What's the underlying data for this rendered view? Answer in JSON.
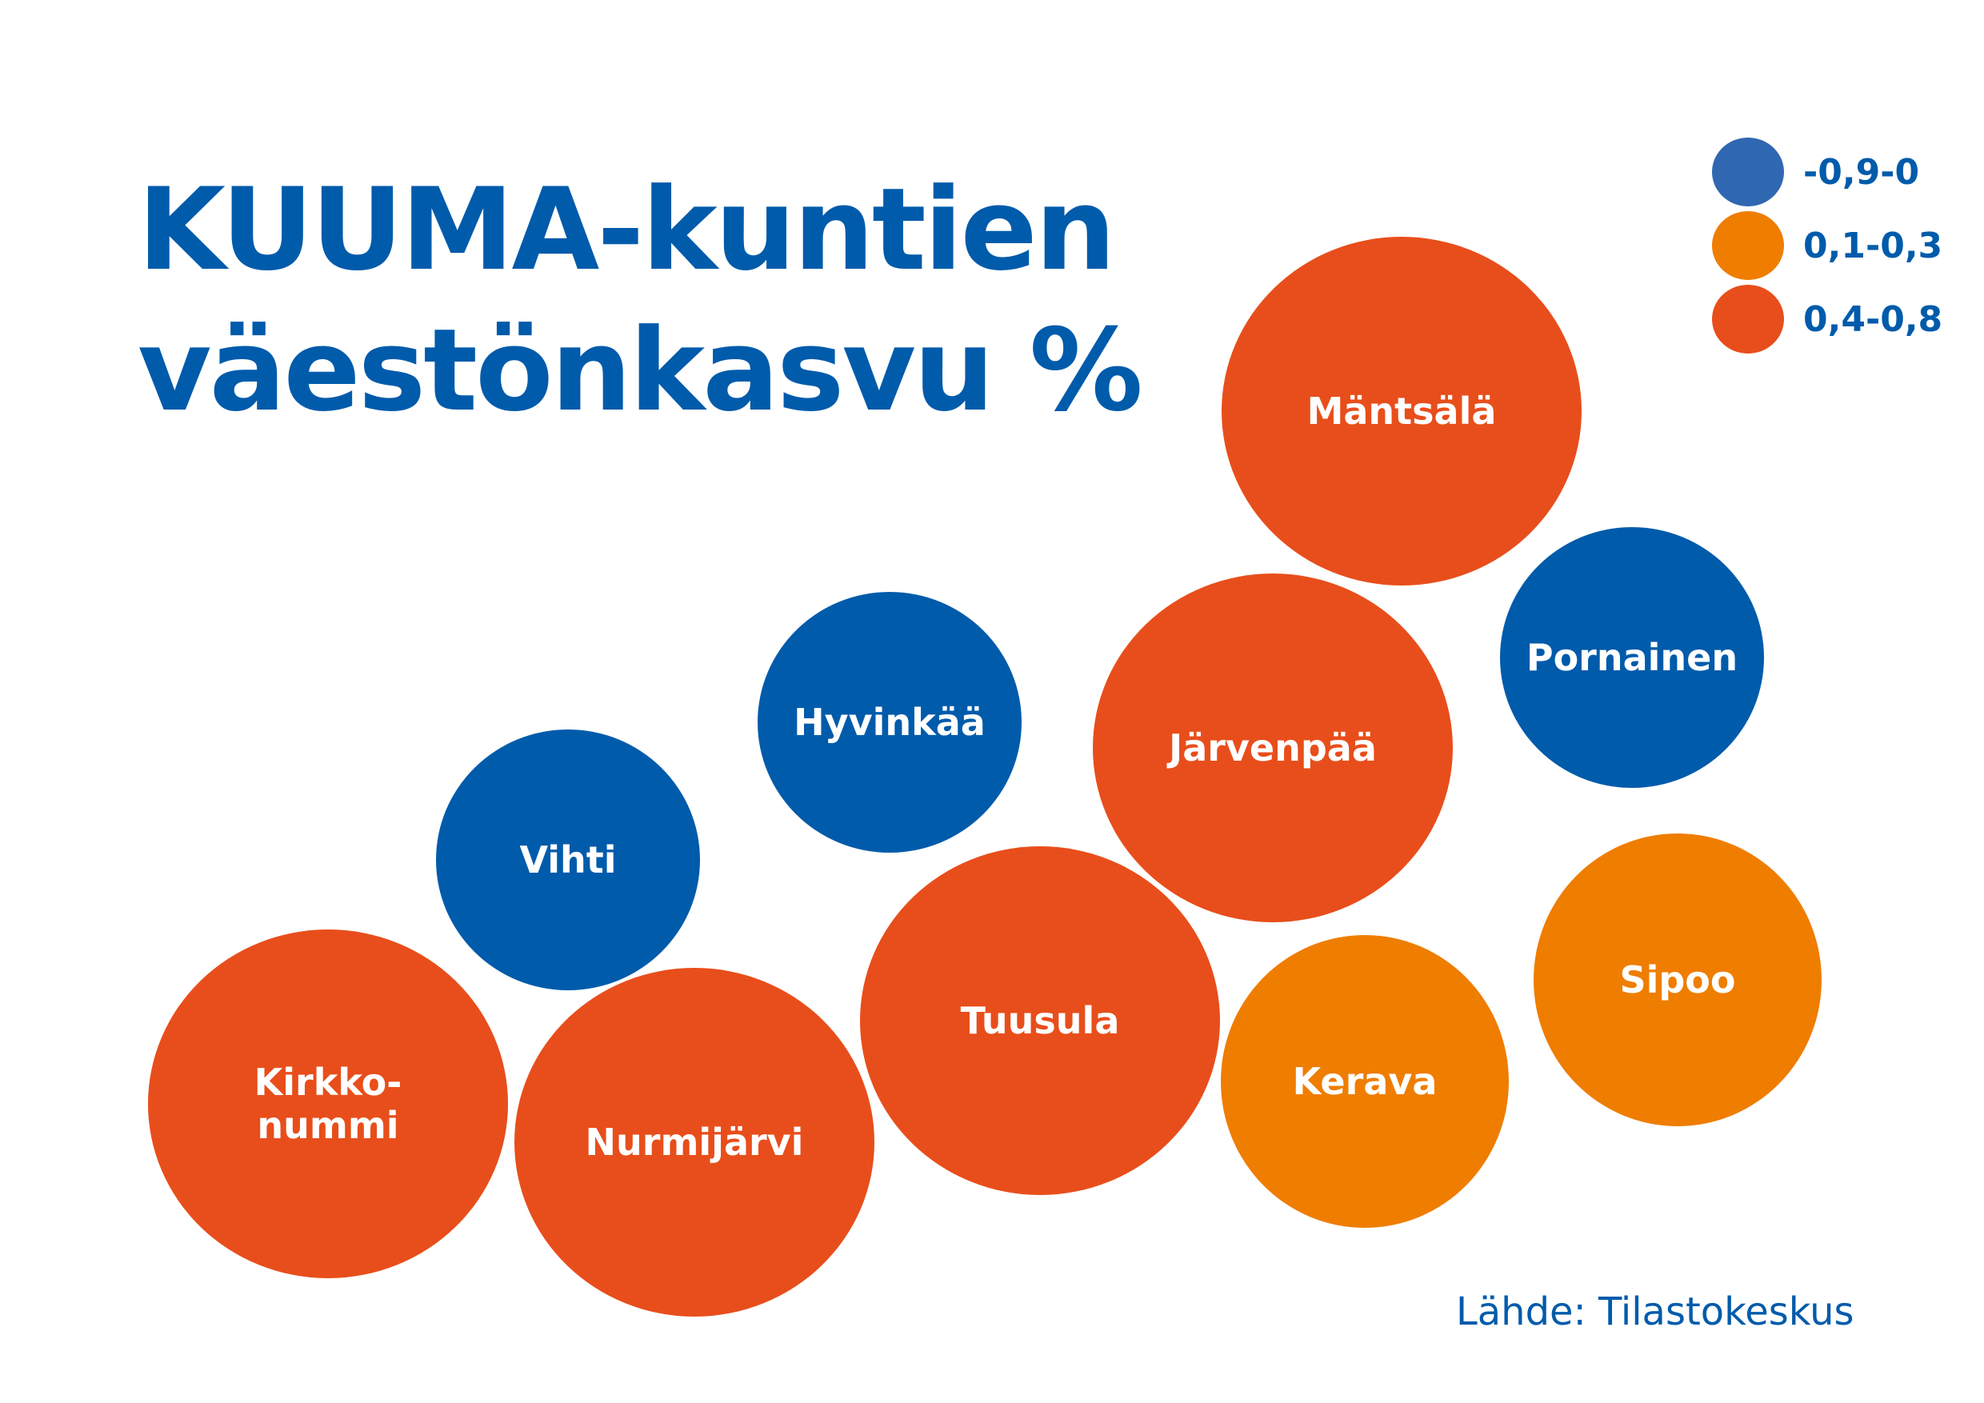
{
  "title": {
    "line1": "KUUMA-kuntien",
    "line2": "väestönkasvu %"
  },
  "legend": [
    {
      "label": "-0,9-0",
      "color": "#2f67b1"
    },
    {
      "label": "0,1-0,3",
      "color": "#ef7d00"
    },
    {
      "label": "0,4-0,8",
      "color": "#e84e1b"
    }
  ],
  "source": "Lähde: Tilastokeskus",
  "chart_data": {
    "type": "bubble",
    "title": "KUUMA-kuntien väestönkasvu %",
    "categories": [
      "-0,9-0",
      "0,1-0,3",
      "0,4-0,8"
    ],
    "colors": {
      "-0,9-0": "#005bab",
      "0,1-0,3": "#ef7d00",
      "0,4-0,8": "#e84e1b"
    },
    "items": [
      {
        "name": "Mäntsälä",
        "category": "0,4-0,8"
      },
      {
        "name": "Pornainen",
        "category": "-0,9-0"
      },
      {
        "name": "Hyvinkää",
        "category": "-0,9-0"
      },
      {
        "name": "Järvenpää",
        "category": "0,4-0,8"
      },
      {
        "name": "Vihti",
        "category": "-0,9-0"
      },
      {
        "name": "Sipoo",
        "category": "0,1-0,3"
      },
      {
        "name": "Tuusula",
        "category": "0,4-0,8"
      },
      {
        "name": "Kerava",
        "category": "0,1-0,3"
      },
      {
        "name": "Kirkko-\nnummi",
        "category": "0,4-0,8"
      },
      {
        "name": "Nurmijärvi",
        "category": "0,4-0,8"
      }
    ]
  }
}
